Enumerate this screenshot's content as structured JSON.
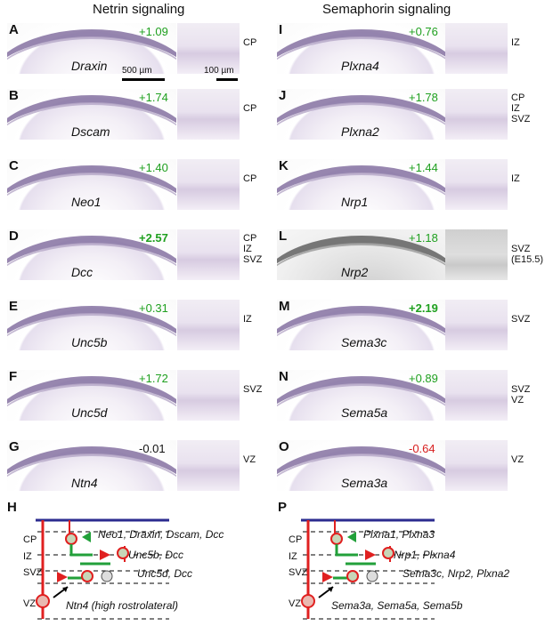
{
  "headers": {
    "left": "Netrin signaling",
    "right": "Semaphorin signaling"
  },
  "panels": [
    {
      "letter": "A",
      "gene": "Draxin",
      "score": "+1.09",
      "zone": "CP",
      "score_color": "green"
    },
    {
      "letter": "B",
      "gene": "Dscam",
      "score": "+1.74",
      "zone": "CP",
      "score_color": "green"
    },
    {
      "letter": "C",
      "gene": "Neo1",
      "score": "+1.40",
      "zone": "CP",
      "score_color": "green"
    },
    {
      "letter": "D",
      "gene": "Dcc",
      "score": "+2.57",
      "zone": "CP\nIZ\nSVZ",
      "score_color": "green"
    },
    {
      "letter": "E",
      "gene": "Unc5b",
      "score": "+0.31",
      "zone": "IZ",
      "score_color": "green"
    },
    {
      "letter": "F",
      "gene": "Unc5d",
      "score": "+1.72",
      "zone": "SVZ",
      "score_color": "green"
    },
    {
      "letter": "G",
      "gene": "Ntn4",
      "score": "-0.01",
      "zone": "VZ",
      "score_color": "black"
    },
    {
      "letter": "I",
      "gene": "Plxna4",
      "score": "+0.76",
      "zone": "IZ",
      "score_color": "green"
    },
    {
      "letter": "J",
      "gene": "Plxna2",
      "score": "+1.78",
      "zone": "CP\nIZ\nSVZ",
      "score_color": "green"
    },
    {
      "letter": "K",
      "gene": "Nrp1",
      "score": "+1.44",
      "zone": "IZ",
      "score_color": "green"
    },
    {
      "letter": "L",
      "gene": "Nrp2",
      "score": "+1.18",
      "zone": "SVZ\n(E15.5)",
      "score_color": "green"
    },
    {
      "letter": "M",
      "gene": "Sema3c",
      "score": "+2.19",
      "zone": "SVZ",
      "score_color": "green"
    },
    {
      "letter": "N",
      "gene": "Sema5a",
      "score": "+0.89",
      "zone": "SVZ\nVZ",
      "score_color": "green"
    },
    {
      "letter": "O",
      "gene": "Sema3a",
      "score": "-0.64",
      "zone": "VZ",
      "score_color": "red"
    }
  ],
  "scalebars": {
    "large": "500 µm",
    "small": "100 µm"
  },
  "diagram_h": {
    "letter": "H",
    "zones": [
      "CP",
      "IZ",
      "SVZ",
      "VZ"
    ],
    "labels": [
      "Neo1, Draxin, Dscam, Dcc",
      "Unc5b, Dcc",
      "Unc5d, Dcc",
      "Ntn4 (high rostrolateral)"
    ]
  },
  "diagram_p": {
    "letter": "P",
    "zones": [
      "CP",
      "IZ",
      "SVZ",
      "VZ"
    ],
    "labels": [
      "Plxna1, Plxna3",
      "Nrp1, Plxna4",
      "Sema3c, Nrp2, Plxna2",
      "Sema3a, Sema5a, Sema5b"
    ]
  },
  "colors": {
    "green": "#1fa01f",
    "red": "#d81e1e",
    "black": "#111111",
    "blue": "#2b2b8f",
    "diag_red": "#e02020",
    "diag_green": "#22a03a"
  }
}
